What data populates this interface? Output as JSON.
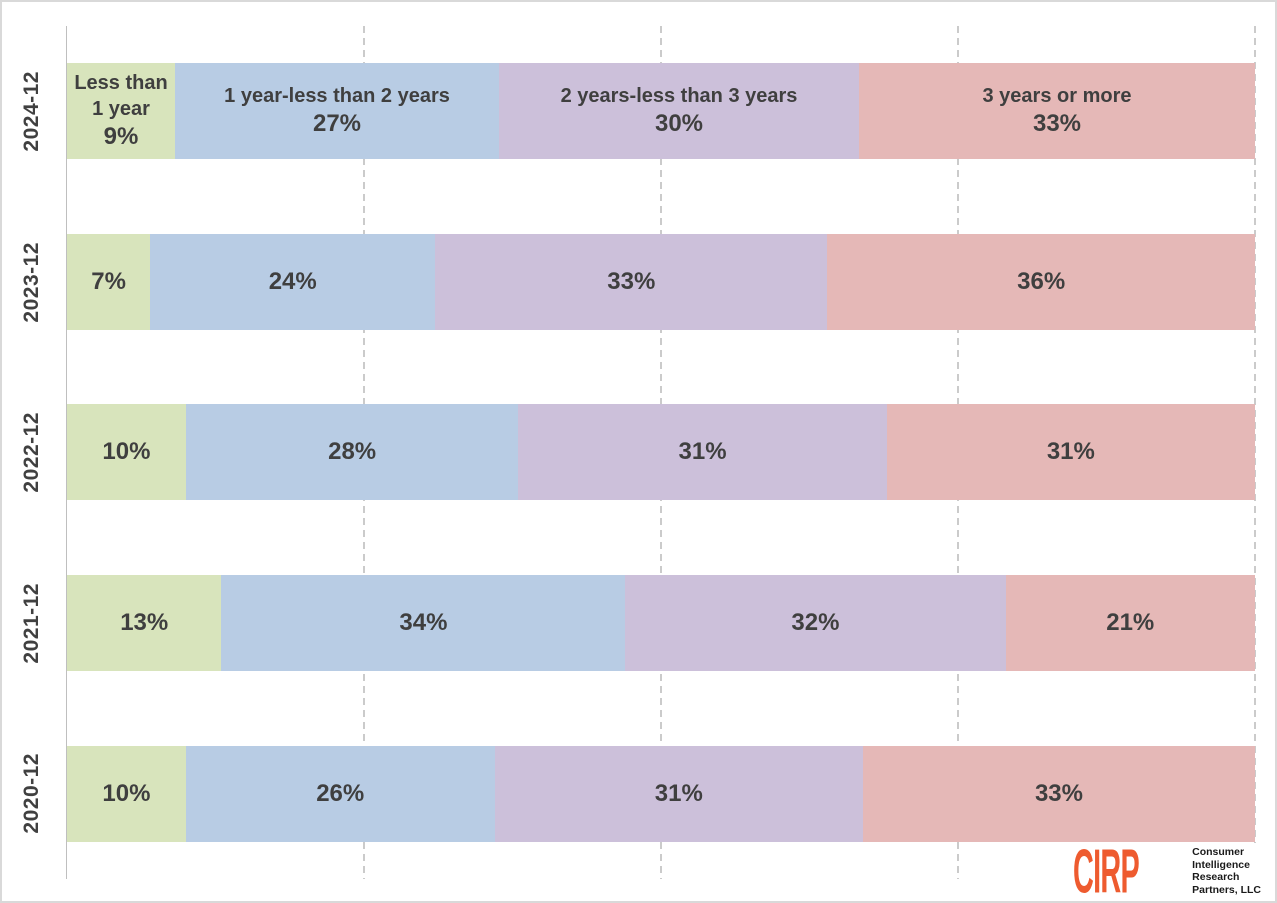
{
  "chart_data": {
    "type": "bar",
    "orientation": "horizontal",
    "stacked": true,
    "normalized_to_100pct": true,
    "categories": [
      "2024-12",
      "2023-12",
      "2022-12",
      "2021-12",
      "2020-12"
    ],
    "series": [
      {
        "name": "Less than 1 year",
        "color": "#d8e4bc",
        "values": [
          9,
          7,
          10,
          13,
          10
        ]
      },
      {
        "name": "1 year-less than 2 years",
        "color": "#b8cce4",
        "values": [
          27,
          24,
          28,
          34,
          26
        ]
      },
      {
        "name": "2 years-less than 3 years",
        "color": "#ccc0da",
        "values": [
          30,
          33,
          31,
          32,
          31
        ]
      },
      {
        "name": "3 years or more",
        "color": "#e5b8b7",
        "values": [
          33,
          36,
          31,
          21,
          33
        ]
      }
    ],
    "value_suffix": "%",
    "series_names_shown_in_first_row_only": true,
    "xlim": [
      0,
      100
    ],
    "gridlines_pct": [
      25,
      50,
      75,
      100
    ],
    "gridline_style": "dashed",
    "legend": "none",
    "label_color": "#3f3f3f",
    "axis_label_color": "#404040",
    "axis_line_color": "#bfbfbf",
    "gridline_color": "#cbcbcb",
    "frame_border_color": "#d9d9d9"
  },
  "logo": {
    "abbr": "CIRP",
    "abbr_color": "#ee5b2f",
    "text_color": "#1a1a1a",
    "lines": [
      "Consumer",
      "Intelligence",
      "Research",
      "Partners, LLC"
    ]
  }
}
